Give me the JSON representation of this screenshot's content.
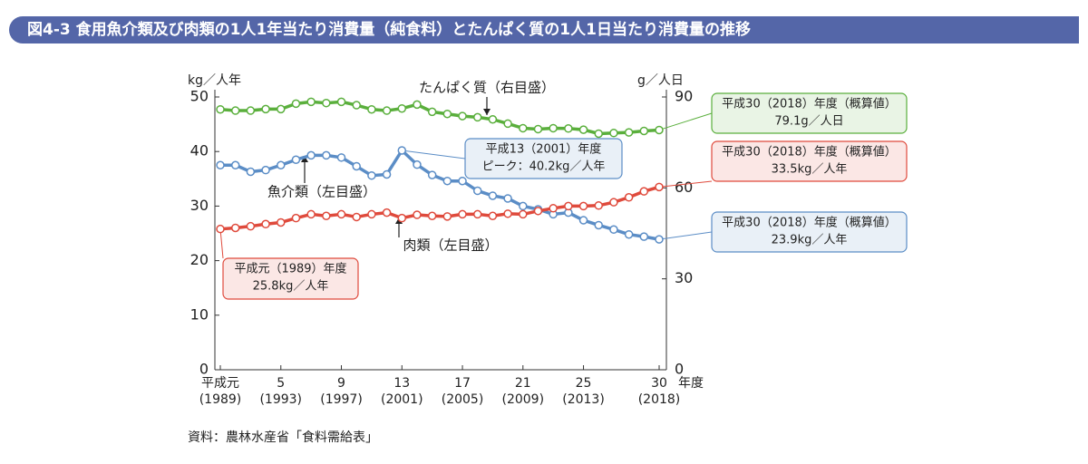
{
  "chart_data": {
    "type": "line",
    "title": "図4-3 食用魚介類及び肉類の1人1年当たり消費量（純食料）とたんぱく質の1人1日当たり消費量の推移",
    "y_label": "kg／人年",
    "y2_label": "g／人日",
    "x_unit": "年度",
    "source": "資料：農林水産省「食料需給表」",
    "x": [
      1989,
      1990,
      1991,
      1992,
      1993,
      1994,
      1995,
      1996,
      1997,
      1998,
      1999,
      2000,
      2001,
      2002,
      2003,
      2004,
      2005,
      2006,
      2007,
      2008,
      2009,
      2010,
      2011,
      2012,
      2013,
      2014,
      2015,
      2016,
      2017,
      2018
    ],
    "xlim": [
      1988.64,
      2018.48
    ],
    "xticks": [
      {
        "value": 1989,
        "label": "平成元",
        "label2": "(1989)"
      },
      {
        "value": 1993,
        "label": "5",
        "label2": "(1993)"
      },
      {
        "value": 1997,
        "label": "9",
        "label2": "(1997)"
      },
      {
        "value": 2001,
        "label": "13",
        "label2": "(2001)"
      },
      {
        "value": 2005,
        "label": "17",
        "label2": "(2005)"
      },
      {
        "value": 2009,
        "label": "21",
        "label2": "(2009)"
      },
      {
        "value": 2013,
        "label": "25",
        "label2": "(2013)"
      },
      {
        "value": 2018,
        "label": "30",
        "label2": "(2018)"
      }
    ],
    "ylim": [
      0,
      50
    ],
    "yticks": [
      0,
      10,
      20,
      30,
      40,
      50
    ],
    "y2lim": [
      0,
      90
    ],
    "y2ticks": [
      0,
      30,
      60,
      90
    ],
    "series": [
      {
        "name": "たんぱく質（右目盛）",
        "color": "#5aaf3c",
        "axis": "y2",
        "values": [
          85.9,
          85.5,
          85.5,
          86.0,
          86.0,
          87.8,
          88.4,
          88.0,
          88.4,
          87.3,
          85.9,
          85.5,
          86.2,
          87.5,
          85.1,
          84.4,
          83.7,
          83.3,
          82.6,
          81.2,
          79.7,
          79.4,
          79.7,
          79.6,
          79.2,
          77.9,
          78.1,
          78.3,
          78.8,
          79.1
        ]
      },
      {
        "name": "魚介類（左目盛）",
        "color": "#5b8dc6",
        "values": [
          37.5,
          37.5,
          36.3,
          36.6,
          37.5,
          38.5,
          39.3,
          39.3,
          38.9,
          37.3,
          35.6,
          35.8,
          40.2,
          37.6,
          35.7,
          34.6,
          34.6,
          32.8,
          31.9,
          31.4,
          30.0,
          29.4,
          28.5,
          28.8,
          27.4,
          26.5,
          25.7,
          24.8,
          24.4,
          23.9
        ]
      },
      {
        "name": "肉類（左目盛）",
        "color": "#df4a3c",
        "values": [
          25.8,
          26.0,
          26.3,
          26.7,
          27.0,
          27.8,
          28.5,
          28.2,
          28.5,
          28.0,
          28.5,
          28.8,
          27.8,
          28.4,
          28.2,
          28.1,
          28.5,
          28.5,
          28.2,
          28.6,
          28.5,
          29.1,
          29.6,
          30.0,
          30.0,
          30.1,
          30.7,
          31.6,
          32.7,
          33.5
        ]
      }
    ],
    "annotations": [
      {
        "lines": [
          "平成30（2018）年度（概算値）",
          "79.1g／人日"
        ],
        "color": "#5aaf3c"
      },
      {
        "lines": [
          "平成30（2018）年度（概算値）",
          "33.5kg／人年"
        ],
        "color": "#df4a3c"
      },
      {
        "lines": [
          "平成30（2018）年度（概算値）",
          "23.9kg／人年"
        ],
        "color": "#5b8dc6"
      },
      {
        "lines": [
          "平成13（2001）年度",
          "ピーク：40.2kg／人年"
        ],
        "color": "#5b8dc6"
      },
      {
        "lines": [
          "平成元（1989）年度",
          "25.8kg／人年"
        ],
        "color": "#df4a3c"
      }
    ]
  }
}
